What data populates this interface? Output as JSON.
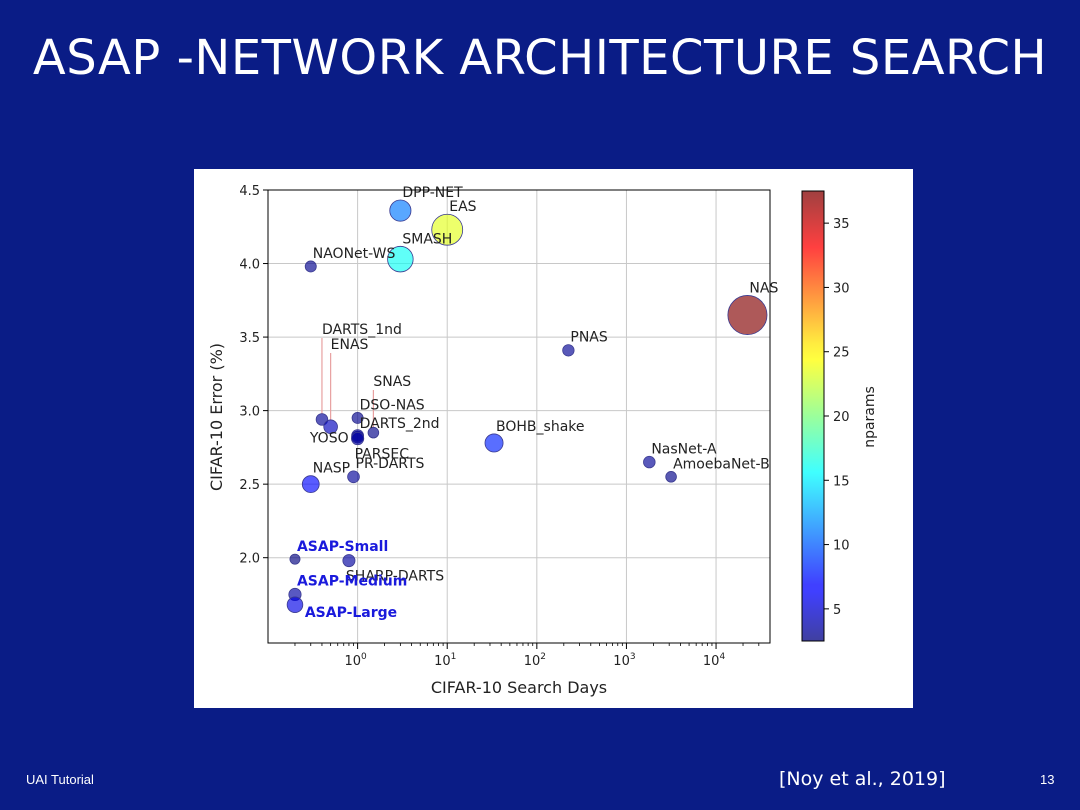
{
  "slide": {
    "title": "ASAP -NETWORK ARCHITECTURE SEARCH",
    "footer_left": "UAI Tutorial",
    "citation": "[Noy et al., 2019]",
    "page_number": "13"
  },
  "colors": {
    "background": "#0a1c86",
    "highlight_label": "#1a1adc",
    "marker_edge": "#3a3a90"
  },
  "chart_data": {
    "type": "scatter",
    "xscale": "log",
    "xlabel": "CIFAR-10 Search Days",
    "ylabel": "CIFAR-10 Error (%)",
    "xlim": [
      0.1,
      40000
    ],
    "ylim": [
      1.42,
      4.5
    ],
    "xticks": [
      {
        "value": 1,
        "base": "10",
        "exp": "0"
      },
      {
        "value": 10,
        "base": "10",
        "exp": "1"
      },
      {
        "value": 100,
        "base": "10",
        "exp": "2"
      },
      {
        "value": 1000,
        "base": "10",
        "exp": "3"
      },
      {
        "value": 10000,
        "base": "10",
        "exp": "4"
      }
    ],
    "yticks": [
      {
        "value": 2.0,
        "label": "2.0"
      },
      {
        "value": 2.5,
        "label": "2.5"
      },
      {
        "value": 3.0,
        "label": "3.0"
      },
      {
        "value": 3.5,
        "label": "3.5"
      },
      {
        "value": 4.0,
        "label": "4.0"
      },
      {
        "value": 4.5,
        "label": "4.5"
      }
    ],
    "colorbar": {
      "label": "nparams",
      "min": 2.5,
      "max": 37.5,
      "colormap": "jet",
      "ticks": [
        5,
        10,
        15,
        20,
        25,
        30,
        35
      ]
    },
    "points": [
      {
        "name": "DPP-NET",
        "x": 3.0,
        "y": 4.36,
        "nparams": 11.0,
        "label_pos": "above-right"
      },
      {
        "name": "EAS",
        "x": 10.0,
        "y": 4.23,
        "nparams": 23.4,
        "label_pos": "above-right"
      },
      {
        "name": "SMASH",
        "x": 3.0,
        "y": 4.03,
        "nparams": 16.0,
        "label_pos": "above-right"
      },
      {
        "name": "NAONet-WS",
        "x": 0.3,
        "y": 3.98,
        "nparams": 3.0,
        "label_pos": "above-right"
      },
      {
        "name": "NAS",
        "x": 22400,
        "y": 3.65,
        "nparams": 37.4,
        "label_pos": "above-right"
      },
      {
        "name": "PNAS",
        "x": 225,
        "y": 3.41,
        "nparams": 3.2,
        "label_pos": "above-right"
      },
      {
        "name": "DARTS_1nd",
        "x": 0.4,
        "y": 2.94,
        "nparams": 3.3,
        "label_pos": "far-above"
      },
      {
        "name": "ENAS",
        "x": 0.5,
        "y": 2.89,
        "nparams": 4.6,
        "label_pos": "far-above"
      },
      {
        "name": "SNAS",
        "x": 1.5,
        "y": 2.85,
        "nparams": 2.8,
        "label_pos": "far-above"
      },
      {
        "name": "DSO-NAS",
        "x": 1.0,
        "y": 2.95,
        "nparams": 3.0,
        "label_pos": "above-right"
      },
      {
        "name": "DARTS_2nd",
        "x": 1.0,
        "y": 2.82,
        "nparams": 3.4,
        "label_pos": "above-right"
      },
      {
        "name": "PARSEC",
        "x": 1.0,
        "y": 2.81,
        "nparams": 3.7,
        "label_pos": "below-right"
      },
      {
        "name": "YOSO",
        "x": 1.0,
        "y": 2.83,
        "nparams": 3.5,
        "label_pos": "left"
      },
      {
        "name": "BOHB_shake",
        "x": 33.3,
        "y": 2.78,
        "nparams": 8.0,
        "label_pos": "above-right"
      },
      {
        "name": "NasNet-A",
        "x": 1800,
        "y": 2.65,
        "nparams": 3.3,
        "label_pos": "above-right"
      },
      {
        "name": "AmoebaNet-B",
        "x": 3150,
        "y": 2.55,
        "nparams": 2.8,
        "label_pos": "above-right"
      },
      {
        "name": "PR-DARTS",
        "x": 0.9,
        "y": 2.55,
        "nparams": 3.4,
        "label_pos": "above-right"
      },
      {
        "name": "NASP",
        "x": 0.3,
        "y": 2.5,
        "nparams": 7.0,
        "label_pos": "above-right"
      },
      {
        "name": "ASAP-Small",
        "x": 0.2,
        "y": 1.99,
        "nparams": 2.5,
        "label_pos": "above-right",
        "highlight": true
      },
      {
        "name": "SHARP-DARTS",
        "x": 0.8,
        "y": 1.98,
        "nparams": 3.6,
        "label_pos": "below-right"
      },
      {
        "name": "ASAP-Medium",
        "x": 0.2,
        "y": 1.75,
        "nparams": 3.7,
        "label_pos": "above-right",
        "highlight": true
      },
      {
        "name": "ASAP-Large",
        "x": 0.2,
        "y": 1.68,
        "nparams": 6.0,
        "label_pos": "right",
        "highlight": true
      }
    ]
  }
}
